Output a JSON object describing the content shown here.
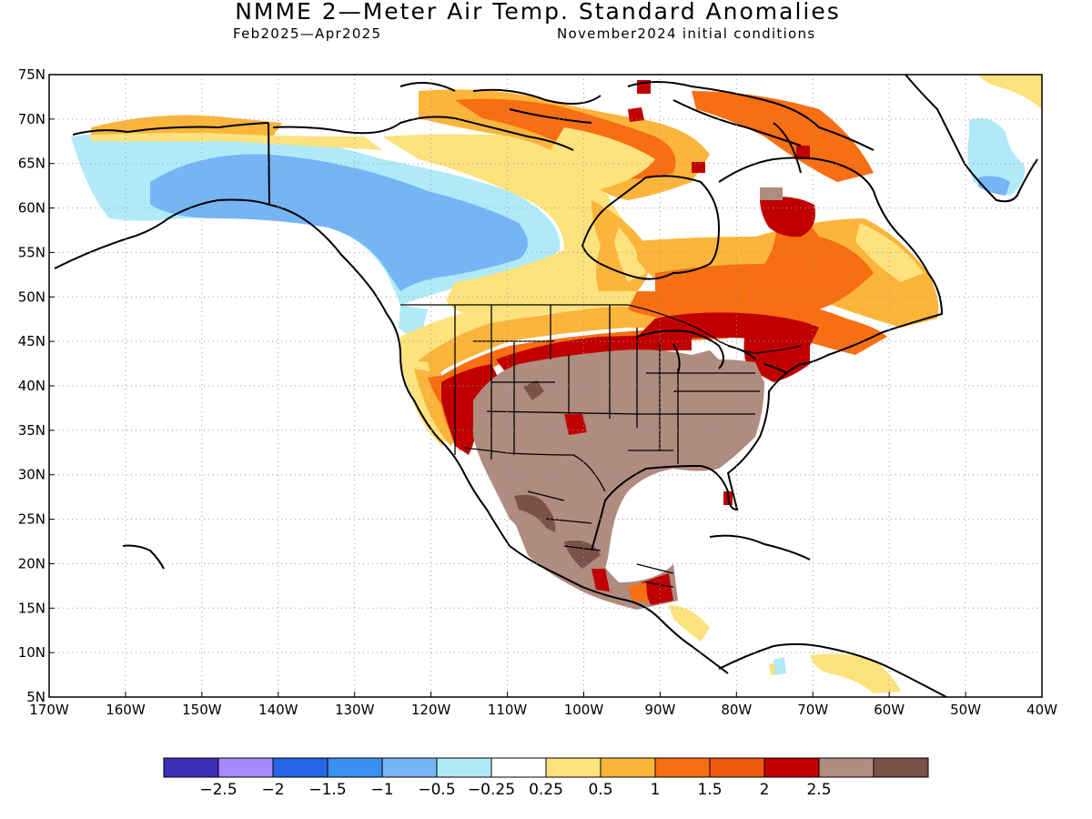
{
  "header": {
    "title": "NMME 2—Meter Air Temp. Standard Anomalies",
    "period": "Feb2025—Apr2025",
    "initial_conditions": "November2024 initial conditions"
  },
  "map": {
    "lon_range": [
      -170,
      -40
    ],
    "lat_range": [
      5,
      75
    ],
    "lon_ticks": [
      "170W",
      "160W",
      "150W",
      "140W",
      "130W",
      "120W",
      "110W",
      "100W",
      "90W",
      "80W",
      "70W",
      "60W",
      "50W",
      "40W"
    ],
    "lat_ticks": [
      "75N",
      "70N",
      "65N",
      "60N",
      "55N",
      "50N",
      "45N",
      "40N",
      "35N",
      "30N",
      "25N",
      "20N",
      "15N",
      "10N",
      "5N"
    ],
    "grid": true,
    "regions": [
      {
        "name": "alaska-yukon-cold",
        "bin": 5
      },
      {
        "name": "alaska-core-cold",
        "bin": 4
      },
      {
        "name": "canadian-arctic-warm",
        "bin": 8
      },
      {
        "name": "canadian-arctic-warmer",
        "bin": 9
      },
      {
        "name": "baffin-greenland-warm",
        "bin": 9
      },
      {
        "name": "quebec-warm",
        "bin": 9
      },
      {
        "name": "quebec-strong-warm",
        "bin": 10
      },
      {
        "name": "hudson-bay-warm",
        "bin": 8
      },
      {
        "name": "northern-plains-warm",
        "bin": 8
      },
      {
        "name": "great-lakes-warm",
        "bin": 9
      },
      {
        "name": "northeast-strong-warm",
        "bin": 10
      },
      {
        "name": "southwest-warm",
        "bin": 9
      },
      {
        "name": "central-us-very-warm",
        "bin": 11
      },
      {
        "name": "mexico-very-warm",
        "bin": 11
      },
      {
        "name": "mexico-extreme-warm",
        "bin": 12
      },
      {
        "name": "central-america-warm",
        "bin": 10
      },
      {
        "name": "greenland-cold",
        "bin": 5
      },
      {
        "name": "caribbean-warm",
        "bin": 7
      }
    ]
  },
  "legend": {
    "colors": [
      "#3b2fb5",
      "#a58afc",
      "#2566e6",
      "#3b8ff0",
      "#76b5f5",
      "#b0eaf8",
      "#ffffff",
      "#fde27d",
      "#fbb53b",
      "#f86e12",
      "#f05a10",
      "#c00000",
      "#b08b7f",
      "#7a5248"
    ],
    "labels": [
      "−2.5",
      "−2",
      "−1.5",
      "−1",
      "−0.5",
      "−0.25",
      "0.25",
      "0.5",
      "1",
      "1.5",
      "2",
      "2.5"
    ]
  }
}
